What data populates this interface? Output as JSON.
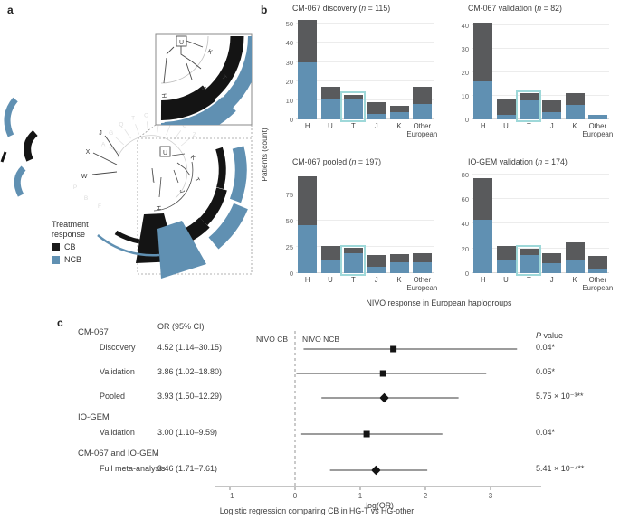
{
  "panels": {
    "a_label": "a",
    "b_label": "b",
    "c_label": "c"
  },
  "panel_a": {
    "legend": {
      "title_line1": "Treatment",
      "title_line2": "response",
      "items": [
        {
          "label": "CB",
          "color": "#1a1a1a"
        },
        {
          "label": "NCB",
          "color": "#6090b2"
        }
      ]
    },
    "tree": {
      "dark_labels": [
        "J",
        "X",
        "W"
      ],
      "european_labels": [
        "U",
        "K",
        "T",
        "J",
        "H"
      ],
      "inset_labels": [
        "U",
        "K",
        "T",
        "J",
        "H"
      ],
      "faint_top_labels": [
        "A",
        "G",
        "Q",
        "T",
        "O",
        "D",
        "H",
        "G",
        "Z"
      ],
      "faint_bottom_labels": [
        "P",
        "B",
        "F"
      ]
    },
    "colors": {
      "cb": "#1a1a1a",
      "ncb": "#6090b2",
      "highlight": "#9ed8d9"
    }
  },
  "panel_b": {
    "ylabel": "Patients (count)",
    "xlabel": "NIVO response in European haplogroups"
  },
  "chart_data": [
    {
      "type": "bar",
      "title": "CM-067 discovery",
      "n": 115,
      "categories": [
        "H",
        "U",
        "T",
        "J",
        "K",
        "Other European"
      ],
      "series": [
        {
          "name": "CB",
          "values": [
            22,
            6,
            2,
            6,
            3,
            9
          ]
        },
        {
          "name": "NCB",
          "values": [
            30,
            11,
            11,
            3,
            4,
            8
          ]
        }
      ],
      "totals": [
        52,
        17,
        13,
        9,
        7,
        17
      ],
      "ylim": [
        0,
        53
      ],
      "yticks": [
        0,
        10,
        20,
        30,
        40,
        50
      ],
      "highlight": "T"
    },
    {
      "type": "bar",
      "title": "CM-067 validation",
      "n": 82,
      "categories": [
        "H",
        "U",
        "T",
        "J",
        "K",
        "Other European"
      ],
      "series": [
        {
          "name": "CB",
          "values": [
            25,
            7,
            3,
            5,
            5,
            0
          ]
        },
        {
          "name": "NCB",
          "values": [
            16,
            2,
            8,
            3,
            6,
            2
          ]
        }
      ],
      "totals": [
        41,
        9,
        11,
        8,
        11,
        2
      ],
      "ylim": [
        0,
        43
      ],
      "yticks": [
        0,
        10,
        20,
        30,
        40
      ],
      "highlight": "T"
    },
    {
      "type": "bar",
      "title": "CM-067 pooled",
      "n": 197,
      "categories": [
        "H",
        "U",
        "T",
        "J",
        "K",
        "Other European"
      ],
      "series": [
        {
          "name": "CB",
          "values": [
            47,
            13,
            5,
            11,
            8,
            9
          ]
        },
        {
          "name": "NCB",
          "values": [
            46,
            13,
            19,
            6,
            10,
            10
          ]
        }
      ],
      "totals": [
        93,
        26,
        24,
        17,
        18,
        19
      ],
      "ylim": [
        0,
        97
      ],
      "yticks": [
        0,
        25,
        50,
        75
      ],
      "highlight": "T"
    },
    {
      "type": "bar",
      "title": "IO-GEM validation",
      "n": 174,
      "categories": [
        "H",
        "U",
        "T",
        "J",
        "K",
        "Other European"
      ],
      "series": [
        {
          "name": "CB",
          "values": [
            34,
            11,
            5,
            8,
            14,
            10
          ]
        },
        {
          "name": "NCB",
          "values": [
            43,
            11,
            15,
            8,
            11,
            4
          ]
        }
      ],
      "totals": [
        77,
        22,
        20,
        16,
        25,
        14
      ],
      "ylim": [
        0,
        82
      ],
      "yticks": [
        0,
        20,
        40,
        60,
        80
      ],
      "highlight": "T"
    },
    {
      "type": "forest",
      "or_header": "OR (95% CI)",
      "p_header_italic": "P",
      "p_header_rest": " value",
      "zero_label_left": "NIVO CB",
      "zero_label_right": "NIVO NCB",
      "rows": [
        {
          "kind": "header",
          "label": "CM-067"
        },
        {
          "kind": "row",
          "label": "Discovery",
          "or_text": "4.52 (1.14–30.15)",
          "or": 4.52,
          "lo": 1.14,
          "hi": 30.15,
          "p": "0.04*",
          "marker": "square"
        },
        {
          "kind": "row",
          "label": "Validation",
          "or_text": "3.86 (1.02–18.80)",
          "or": 3.86,
          "lo": 1.02,
          "hi": 18.8,
          "p": "0.05*",
          "marker": "square"
        },
        {
          "kind": "row",
          "label": "Pooled",
          "or_text": "3.93 (1.50–12.29)",
          "or": 3.93,
          "lo": 1.5,
          "hi": 12.29,
          "p": "5.75 × 10⁻³**",
          "marker": "diamond"
        },
        {
          "kind": "header",
          "label": "IO-GEM"
        },
        {
          "kind": "row",
          "label": "Validation",
          "or_text": "3.00 (1.10–9.59)",
          "or": 3.0,
          "lo": 1.1,
          "hi": 9.59,
          "p": "0.04*",
          "marker": "square"
        },
        {
          "kind": "header",
          "label": "CM-067 and IO-GEM"
        },
        {
          "kind": "row",
          "label": "Full meta-analysis",
          "or_text": "3.46 (1.71–7.61)",
          "or": 3.46,
          "lo": 1.71,
          "hi": 7.61,
          "p": "5.41 × 10⁻⁴**",
          "marker": "diamond"
        }
      ],
      "xticks": [
        "−1",
        "0",
        "1",
        "2",
        "3"
      ],
      "xtick_values": [
        -1,
        0,
        1,
        2,
        3
      ],
      "xlabel": "log(OR)",
      "xlim": [
        -1.2,
        3.75
      ],
      "caption": "Logistic regression comparing CB in HG-T vs HG-other"
    }
  ]
}
